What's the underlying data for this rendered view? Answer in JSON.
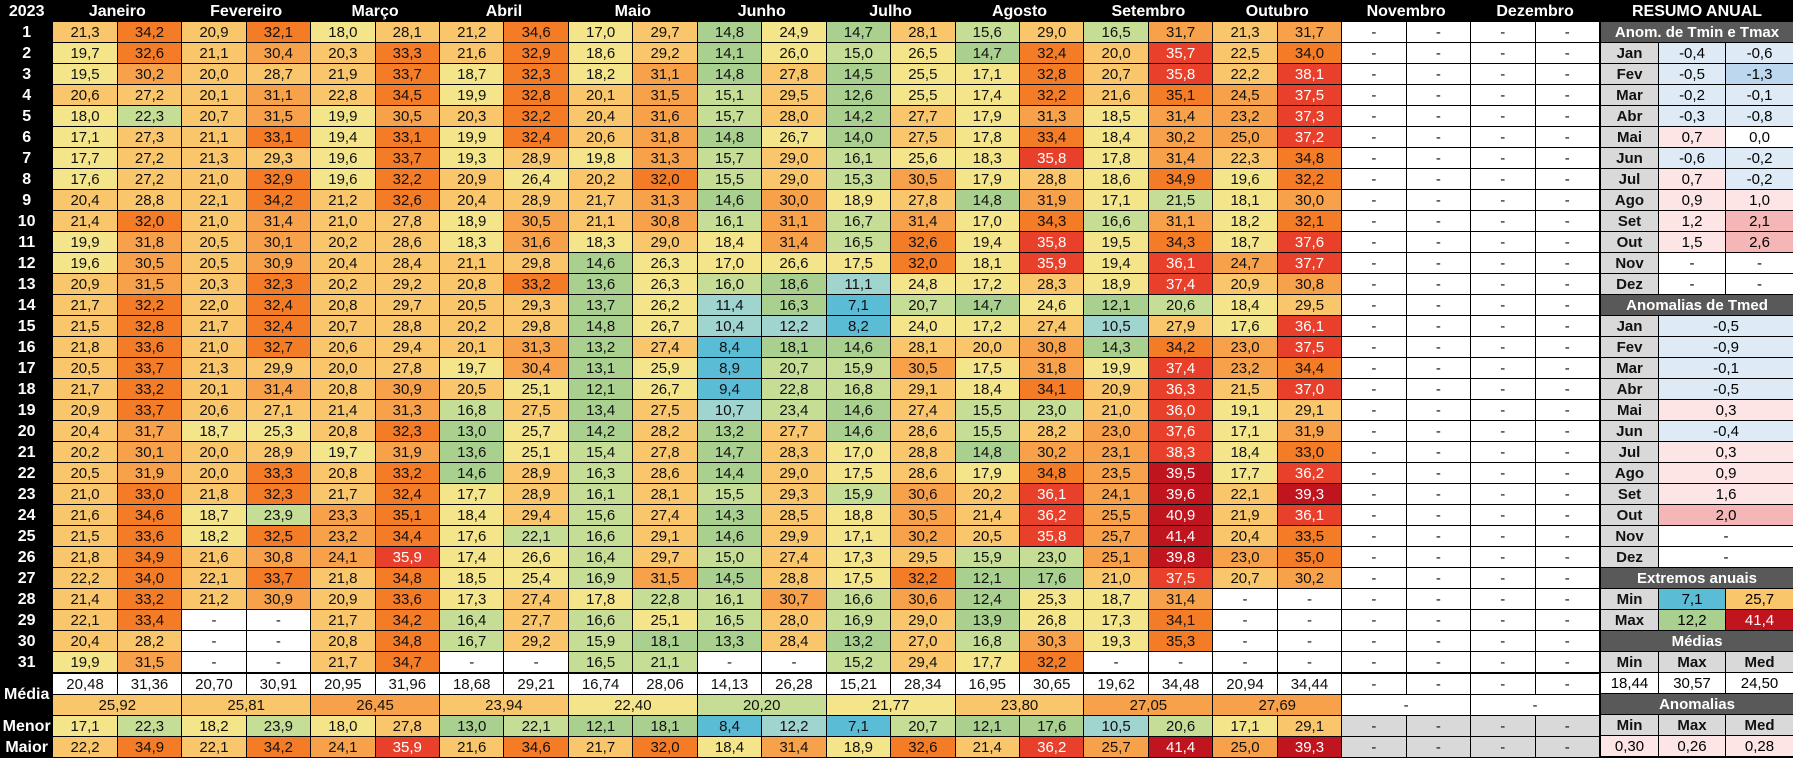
{
  "year": "2023",
  "months": [
    "Janeiro",
    "Fevereiro",
    "Março",
    "Abril",
    "Maio",
    "Junho",
    "Julho",
    "Agosto",
    "Setembro",
    "Outubro",
    "Novembro",
    "Dezembro"
  ],
  "dash": "-",
  "days": [
    [
      [
        "21,3",
        "34,2"
      ],
      [
        "20,9",
        "32,1"
      ],
      [
        "18,0",
        "28,1"
      ],
      [
        "21,2",
        "34,6"
      ],
      [
        "17,0",
        "29,7"
      ],
      [
        "14,8",
        "24,9"
      ],
      [
        "14,7",
        "28,1"
      ],
      [
        "15,6",
        "29,0"
      ],
      [
        "16,5",
        "31,7"
      ],
      [
        "21,3",
        "31,7"
      ]
    ],
    [
      [
        "19,7",
        "32,6"
      ],
      [
        "21,1",
        "30,4"
      ],
      [
        "20,3",
        "33,3"
      ],
      [
        "21,6",
        "32,9"
      ],
      [
        "18,6",
        "29,2"
      ],
      [
        "14,1",
        "26,0"
      ],
      [
        "15,0",
        "26,5"
      ],
      [
        "14,7",
        "32,4"
      ],
      [
        "20,0",
        "35,7"
      ],
      [
        "22,5",
        "34,0"
      ]
    ],
    [
      [
        "19,5",
        "30,2"
      ],
      [
        "20,0",
        "28,7"
      ],
      [
        "21,9",
        "33,7"
      ],
      [
        "18,7",
        "32,3"
      ],
      [
        "18,2",
        "31,1"
      ],
      [
        "14,8",
        "27,8"
      ],
      [
        "14,5",
        "25,5"
      ],
      [
        "17,1",
        "32,8"
      ],
      [
        "20,7",
        "35,8"
      ],
      [
        "22,2",
        "38,1"
      ]
    ],
    [
      [
        "20,6",
        "27,2"
      ],
      [
        "20,1",
        "31,1"
      ],
      [
        "22,8",
        "34,5"
      ],
      [
        "19,9",
        "32,8"
      ],
      [
        "20,1",
        "31,5"
      ],
      [
        "15,1",
        "29,5"
      ],
      [
        "12,6",
        "25,5"
      ],
      [
        "17,4",
        "32,2"
      ],
      [
        "21,6",
        "35,1"
      ],
      [
        "24,5",
        "37,5"
      ]
    ],
    [
      [
        "18,0",
        "22,3"
      ],
      [
        "20,7",
        "31,5"
      ],
      [
        "19,9",
        "30,5"
      ],
      [
        "20,3",
        "32,2"
      ],
      [
        "20,4",
        "31,6"
      ],
      [
        "15,7",
        "28,0"
      ],
      [
        "14,2",
        "27,7"
      ],
      [
        "17,9",
        "31,3"
      ],
      [
        "18,5",
        "31,4"
      ],
      [
        "23,2",
        "37,3"
      ]
    ],
    [
      [
        "17,1",
        "27,3"
      ],
      [
        "21,1",
        "33,1"
      ],
      [
        "19,4",
        "33,1"
      ],
      [
        "19,9",
        "32,4"
      ],
      [
        "20,6",
        "31,8"
      ],
      [
        "14,8",
        "26,7"
      ],
      [
        "14,0",
        "27,5"
      ],
      [
        "17,8",
        "33,4"
      ],
      [
        "18,4",
        "30,2"
      ],
      [
        "25,0",
        "37,2"
      ]
    ],
    [
      [
        "17,7",
        "27,2"
      ],
      [
        "21,3",
        "29,3"
      ],
      [
        "19,6",
        "33,7"
      ],
      [
        "19,3",
        "28,9"
      ],
      [
        "19,8",
        "31,3"
      ],
      [
        "15,7",
        "29,0"
      ],
      [
        "16,1",
        "25,6"
      ],
      [
        "18,3",
        "35,8"
      ],
      [
        "17,8",
        "31,4"
      ],
      [
        "22,3",
        "34,8"
      ]
    ],
    [
      [
        "17,6",
        "27,2"
      ],
      [
        "21,0",
        "32,9"
      ],
      [
        "19,6",
        "32,2"
      ],
      [
        "20,9",
        "26,4"
      ],
      [
        "20,2",
        "32,0"
      ],
      [
        "15,5",
        "29,0"
      ],
      [
        "15,3",
        "30,5"
      ],
      [
        "17,9",
        "28,8"
      ],
      [
        "18,6",
        "34,9"
      ],
      [
        "19,6",
        "32,2"
      ]
    ],
    [
      [
        "20,4",
        "28,8"
      ],
      [
        "22,1",
        "34,2"
      ],
      [
        "21,2",
        "32,6"
      ],
      [
        "20,4",
        "28,9"
      ],
      [
        "21,7",
        "31,3"
      ],
      [
        "14,6",
        "30,0"
      ],
      [
        "18,9",
        "27,8"
      ],
      [
        "14,8",
        "31,9"
      ],
      [
        "17,1",
        "21,5"
      ],
      [
        "18,1",
        "30,0"
      ]
    ],
    [
      [
        "21,4",
        "32,0"
      ],
      [
        "21,0",
        "31,4"
      ],
      [
        "21,0",
        "27,8"
      ],
      [
        "18,9",
        "30,5"
      ],
      [
        "21,1",
        "30,8"
      ],
      [
        "16,1",
        "31,1"
      ],
      [
        "16,7",
        "31,4"
      ],
      [
        "17,0",
        "34,3"
      ],
      [
        "16,6",
        "31,1"
      ],
      [
        "18,2",
        "32,1"
      ]
    ],
    [
      [
        "19,9",
        "31,8"
      ],
      [
        "20,5",
        "30,1"
      ],
      [
        "20,2",
        "28,6"
      ],
      [
        "18,3",
        "31,6"
      ],
      [
        "18,3",
        "29,0"
      ],
      [
        "18,4",
        "31,4"
      ],
      [
        "16,5",
        "32,6"
      ],
      [
        "19,4",
        "35,8"
      ],
      [
        "19,5",
        "34,3"
      ],
      [
        "18,7",
        "37,6"
      ]
    ],
    [
      [
        "19,6",
        "30,5"
      ],
      [
        "20,5",
        "30,9"
      ],
      [
        "20,4",
        "28,4"
      ],
      [
        "21,1",
        "29,8"
      ],
      [
        "14,6",
        "26,3"
      ],
      [
        "17,0",
        "26,6"
      ],
      [
        "17,5",
        "32,0"
      ],
      [
        "18,1",
        "35,9"
      ],
      [
        "19,4",
        "36,1"
      ],
      [
        "24,7",
        "37,7"
      ]
    ],
    [
      [
        "20,9",
        "31,5"
      ],
      [
        "20,3",
        "32,3"
      ],
      [
        "20,2",
        "29,2"
      ],
      [
        "20,8",
        "33,2"
      ],
      [
        "13,6",
        "26,3"
      ],
      [
        "16,0",
        "18,6"
      ],
      [
        "11,1",
        "24,8"
      ],
      [
        "17,2",
        "28,3"
      ],
      [
        "18,9",
        "37,4"
      ],
      [
        "20,9",
        "30,8"
      ]
    ],
    [
      [
        "21,7",
        "32,2"
      ],
      [
        "22,0",
        "32,4"
      ],
      [
        "20,8",
        "29,7"
      ],
      [
        "20,5",
        "29,3"
      ],
      [
        "13,7",
        "26,2"
      ],
      [
        "11,4",
        "16,3"
      ],
      [
        "7,1",
        "20,7"
      ],
      [
        "14,7",
        "24,6"
      ],
      [
        "12,1",
        "20,6"
      ],
      [
        "18,4",
        "29,5"
      ]
    ],
    [
      [
        "21,5",
        "32,8"
      ],
      [
        "21,7",
        "32,4"
      ],
      [
        "20,7",
        "28,8"
      ],
      [
        "20,2",
        "29,8"
      ],
      [
        "14,8",
        "26,7"
      ],
      [
        "10,4",
        "12,2"
      ],
      [
        "8,2",
        "24,0"
      ],
      [
        "17,2",
        "27,4"
      ],
      [
        "10,5",
        "27,9"
      ],
      [
        "17,6",
        "36,1"
      ]
    ],
    [
      [
        "21,8",
        "33,6"
      ],
      [
        "21,0",
        "32,7"
      ],
      [
        "20,6",
        "29,4"
      ],
      [
        "20,1",
        "31,3"
      ],
      [
        "13,2",
        "27,4"
      ],
      [
        "8,4",
        "18,1"
      ],
      [
        "14,6",
        "28,1"
      ],
      [
        "20,0",
        "30,8"
      ],
      [
        "14,3",
        "34,2"
      ],
      [
        "23,0",
        "37,5"
      ]
    ],
    [
      [
        "20,5",
        "33,7"
      ],
      [
        "21,3",
        "29,9"
      ],
      [
        "20,0",
        "27,8"
      ],
      [
        "19,7",
        "30,4"
      ],
      [
        "13,1",
        "25,9"
      ],
      [
        "8,9",
        "20,7"
      ],
      [
        "15,9",
        "30,5"
      ],
      [
        "17,5",
        "31,8"
      ],
      [
        "19,9",
        "37,4"
      ],
      [
        "23,2",
        "34,4"
      ]
    ],
    [
      [
        "21,7",
        "33,2"
      ],
      [
        "20,1",
        "31,4"
      ],
      [
        "20,8",
        "30,9"
      ],
      [
        "20,5",
        "25,1"
      ],
      [
        "12,1",
        "26,7"
      ],
      [
        "9,4",
        "22,8"
      ],
      [
        "16,8",
        "29,1"
      ],
      [
        "18,4",
        "34,1"
      ],
      [
        "20,9",
        "36,3"
      ],
      [
        "21,5",
        "37,0"
      ]
    ],
    [
      [
        "20,9",
        "33,7"
      ],
      [
        "20,6",
        "27,1"
      ],
      [
        "21,4",
        "31,3"
      ],
      [
        "16,8",
        "27,5"
      ],
      [
        "13,4",
        "27,5"
      ],
      [
        "10,7",
        "23,4"
      ],
      [
        "14,6",
        "27,4"
      ],
      [
        "15,5",
        "23,0"
      ],
      [
        "21,0",
        "36,0"
      ],
      [
        "19,1",
        "29,1"
      ]
    ],
    [
      [
        "20,4",
        "31,7"
      ],
      [
        "18,7",
        "25,3"
      ],
      [
        "20,8",
        "32,3"
      ],
      [
        "13,0",
        "25,7"
      ],
      [
        "14,2",
        "28,2"
      ],
      [
        "13,2",
        "27,7"
      ],
      [
        "14,6",
        "28,6"
      ],
      [
        "15,5",
        "28,2"
      ],
      [
        "23,0",
        "37,6"
      ],
      [
        "17,1",
        "31,9"
      ]
    ],
    [
      [
        "20,2",
        "30,1"
      ],
      [
        "20,0",
        "28,9"
      ],
      [
        "19,7",
        "31,9"
      ],
      [
        "13,6",
        "25,1"
      ],
      [
        "15,4",
        "27,8"
      ],
      [
        "14,7",
        "28,3"
      ],
      [
        "17,0",
        "28,8"
      ],
      [
        "14,8",
        "30,2"
      ],
      [
        "23,1",
        "38,3"
      ],
      [
        "18,4",
        "33,0"
      ]
    ],
    [
      [
        "20,5",
        "31,9"
      ],
      [
        "20,0",
        "33,3"
      ],
      [
        "20,8",
        "33,2"
      ],
      [
        "14,6",
        "28,9"
      ],
      [
        "16,3",
        "28,6"
      ],
      [
        "14,4",
        "29,0"
      ],
      [
        "17,5",
        "28,6"
      ],
      [
        "17,9",
        "34,8"
      ],
      [
        "23,5",
        "39,5"
      ],
      [
        "17,7",
        "36,2"
      ]
    ],
    [
      [
        "21,0",
        "33,0"
      ],
      [
        "21,8",
        "32,3"
      ],
      [
        "21,7",
        "32,4"
      ],
      [
        "17,7",
        "28,9"
      ],
      [
        "16,1",
        "28,1"
      ],
      [
        "15,5",
        "29,3"
      ],
      [
        "15,9",
        "30,6"
      ],
      [
        "20,2",
        "36,1"
      ],
      [
        "24,1",
        "39,6"
      ],
      [
        "22,1",
        "39,3"
      ]
    ],
    [
      [
        "21,6",
        "34,6"
      ],
      [
        "18,7",
        "23,9"
      ],
      [
        "23,3",
        "35,1"
      ],
      [
        "18,4",
        "29,4"
      ],
      [
        "15,6",
        "27,4"
      ],
      [
        "14,3",
        "28,5"
      ],
      [
        "18,8",
        "30,5"
      ],
      [
        "21,4",
        "36,2"
      ],
      [
        "25,5",
        "40,9"
      ],
      [
        "21,9",
        "36,1"
      ]
    ],
    [
      [
        "21,5",
        "33,6"
      ],
      [
        "18,2",
        "32,5"
      ],
      [
        "23,2",
        "34,4"
      ],
      [
        "17,6",
        "22,1"
      ],
      [
        "16,6",
        "29,1"
      ],
      [
        "14,6",
        "29,9"
      ],
      [
        "17,1",
        "30,2"
      ],
      [
        "20,5",
        "35,8"
      ],
      [
        "25,7",
        "41,4"
      ],
      [
        "20,4",
        "33,5"
      ]
    ],
    [
      [
        "21,8",
        "34,9"
      ],
      [
        "21,6",
        "30,8"
      ],
      [
        "24,1",
        "35,9"
      ],
      [
        "17,4",
        "26,6"
      ],
      [
        "16,4",
        "29,7"
      ],
      [
        "15,0",
        "27,4"
      ],
      [
        "17,3",
        "29,5"
      ],
      [
        "15,9",
        "23,0"
      ],
      [
        "25,1",
        "39,8"
      ],
      [
        "23,0",
        "35,0"
      ]
    ],
    [
      [
        "22,2",
        "34,0"
      ],
      [
        "22,1",
        "33,7"
      ],
      [
        "21,8",
        "34,8"
      ],
      [
        "18,5",
        "25,4"
      ],
      [
        "16,9",
        "31,5"
      ],
      [
        "14,5",
        "28,8"
      ],
      [
        "17,5",
        "32,2"
      ],
      [
        "12,1",
        "17,6"
      ],
      [
        "21,0",
        "37,5"
      ],
      [
        "20,7",
        "30,2"
      ]
    ],
    [
      [
        "21,4",
        "33,2"
      ],
      [
        "21,2",
        "30,9"
      ],
      [
        "20,9",
        "33,6"
      ],
      [
        "17,3",
        "27,4"
      ],
      [
        "17,8",
        "22,8"
      ],
      [
        "16,1",
        "30,7"
      ],
      [
        "16,6",
        "30,6"
      ],
      [
        "12,4",
        "25,3"
      ],
      [
        "18,7",
        "31,4"
      ],
      [
        "-",
        "-"
      ]
    ],
    [
      [
        "22,1",
        "33,4"
      ],
      [
        "-",
        "-"
      ],
      [
        "21,7",
        "34,2"
      ],
      [
        "16,4",
        "27,7"
      ],
      [
        "16,6",
        "25,1"
      ],
      [
        "16,5",
        "28,0"
      ],
      [
        "16,9",
        "29,0"
      ],
      [
        "13,9",
        "26,8"
      ],
      [
        "17,3",
        "34,1"
      ],
      [
        "-",
        "-"
      ]
    ],
    [
      [
        "20,4",
        "28,2"
      ],
      [
        "-",
        "-"
      ],
      [
        "20,8",
        "34,8"
      ],
      [
        "16,7",
        "29,2"
      ],
      [
        "15,9",
        "18,1"
      ],
      [
        "13,3",
        "28,4"
      ],
      [
        "13,2",
        "27,0"
      ],
      [
        "16,8",
        "30,3"
      ],
      [
        "19,3",
        "35,3"
      ],
      [
        "-",
        "-"
      ]
    ],
    [
      [
        "19,9",
        "31,5"
      ],
      [
        "-",
        "-"
      ],
      [
        "21,7",
        "34,7"
      ],
      [
        "-",
        "-"
      ],
      [
        "16,5",
        "21,1"
      ],
      [
        "-",
        "-"
      ],
      [
        "15,2",
        "29,4"
      ],
      [
        "17,7",
        "32,2"
      ],
      [
        "-",
        "-"
      ],
      [
        "-",
        "-"
      ]
    ]
  ],
  "media_label": "Média",
  "menor_label": "Menor",
  "maior_label": "Maior",
  "media": [
    [
      "20,48",
      "31,36"
    ],
    [
      "20,70",
      "30,91"
    ],
    [
      "20,95",
      "31,96"
    ],
    [
      "18,68",
      "29,21"
    ],
    [
      "16,74",
      "28,06"
    ],
    [
      "14,13",
      "26,28"
    ],
    [
      "15,21",
      "28,34"
    ],
    [
      "16,95",
      "30,65"
    ],
    [
      "19,62",
      "34,48"
    ],
    [
      "20,94",
      "34,44"
    ]
  ],
  "media_med": [
    "25,92",
    "25,81",
    "26,45",
    "23,94",
    "22,40",
    "20,20",
    "21,77",
    "23,80",
    "27,05",
    "27,69"
  ],
  "menor": [
    [
      "17,1",
      "22,3"
    ],
    [
      "18,2",
      "23,9"
    ],
    [
      "18,0",
      "27,8"
    ],
    [
      "13,0",
      "22,1"
    ],
    [
      "12,1",
      "18,1"
    ],
    [
      "8,4",
      "12,2"
    ],
    [
      "7,1",
      "20,7"
    ],
    [
      "12,1",
      "17,6"
    ],
    [
      "10,5",
      "20,6"
    ],
    [
      "17,1",
      "29,1"
    ]
  ],
  "maior": [
    [
      "22,2",
      "34,9"
    ],
    [
      "22,1",
      "34,2"
    ],
    [
      "24,1",
      "35,9"
    ],
    [
      "21,6",
      "34,6"
    ],
    [
      "21,7",
      "32,0"
    ],
    [
      "18,4",
      "31,4"
    ],
    [
      "18,9",
      "32,6"
    ],
    [
      "21,4",
      "36,2"
    ],
    [
      "25,7",
      "41,4"
    ],
    [
      "25,0",
      "39,3"
    ]
  ],
  "side": {
    "title": "RESUMO ANUAL",
    "anom_tmin_tmax_title": "Anom. de Tmin e Tmax",
    "anom_tmin_tmax": [
      [
        "Jan",
        "-0,4",
        "-0,6"
      ],
      [
        "Fev",
        "-0,5",
        "-1,3"
      ],
      [
        "Mar",
        "-0,2",
        "-0,1"
      ],
      [
        "Abr",
        "-0,3",
        "-0,8"
      ],
      [
        "Mai",
        "0,7",
        "0,0"
      ],
      [
        "Jun",
        "-0,6",
        "-0,2"
      ],
      [
        "Jul",
        "0,7",
        "-0,2"
      ],
      [
        "Ago",
        "0,9",
        "1,0"
      ],
      [
        "Set",
        "1,2",
        "2,1"
      ],
      [
        "Out",
        "1,5",
        "2,6"
      ],
      [
        "Nov",
        "-",
        "-"
      ],
      [
        "Dez",
        "-",
        "-"
      ]
    ],
    "anom_tmed_title": "Anomalias de Tmed",
    "anom_tmed": [
      [
        "Jan",
        "-0,5"
      ],
      [
        "Fev",
        "-0,9"
      ],
      [
        "Mar",
        "-0,1"
      ],
      [
        "Abr",
        "-0,5"
      ],
      [
        "Mai",
        "0,3"
      ],
      [
        "Jun",
        "-0,4"
      ],
      [
        "Jul",
        "0,3"
      ],
      [
        "Ago",
        "0,9"
      ],
      [
        "Set",
        "1,6"
      ],
      [
        "Out",
        "2,0"
      ],
      [
        "Nov",
        "-"
      ],
      [
        "Dez",
        "-"
      ]
    ],
    "extremos_title": "Extremos anuais",
    "extremos": [
      [
        "Min",
        "7,1",
        "25,7"
      ],
      [
        "Max",
        "12,2",
        "41,4"
      ]
    ],
    "medias_title": "Médias",
    "medias_heads": [
      "Min",
      "Max",
      "Med"
    ],
    "medias_vals": [
      "18,44",
      "30,57",
      "24,50"
    ],
    "anomalias_title": "Anomalias",
    "anomalias_heads": [
      "Min",
      "Max",
      "Med"
    ],
    "anomalias_vals": [
      "0,30",
      "0,26",
      "0,28"
    ]
  },
  "colors": {
    "blue": "#5bbcd6",
    "lightblue": "#9fd4cf",
    "green": "#a9d08e",
    "lightgreen": "#c6dd95",
    "yellow": "#f4e58a",
    "lightorange": "#f9c66b",
    "orange": "#f7a24a",
    "darkorange": "#f47c27",
    "red": "#e8402a",
    "darkred": "#c0141e",
    "anom_neg": "#deebf7",
    "anom_neg_strong": "#bdd7ee",
    "anom_pos": "#fde5e5",
    "anom_pos_strong": "#f4b6b6"
  }
}
